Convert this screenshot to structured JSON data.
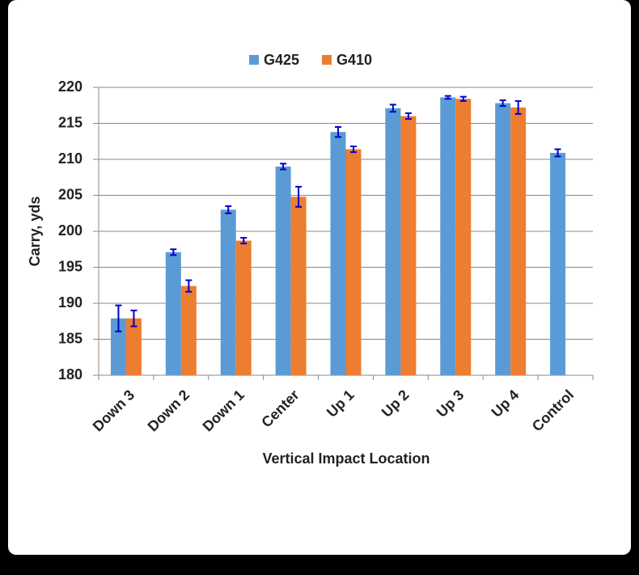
{
  "chart_data": {
    "type": "bar",
    "x_label": "Vertical Impact Location",
    "y_label": "Carry, yds",
    "categories": [
      "Down 3",
      "Down 2",
      "Down 1",
      "Center",
      "Up 1",
      "Up 2",
      "Up 3",
      "Up 4",
      "Control"
    ],
    "series": [
      {
        "name": "G425",
        "color": "#5b9bd5",
        "values": [
          187.9,
          197.1,
          203.0,
          209.0,
          213.8,
          217.1,
          218.6,
          217.8,
          210.9
        ],
        "errors": [
          1.8,
          0.4,
          0.5,
          0.4,
          0.7,
          0.5,
          0.2,
          0.4,
          0.5
        ]
      },
      {
        "name": "G410",
        "color": "#ed7d31",
        "values": [
          187.9,
          192.4,
          198.7,
          204.8,
          211.4,
          216.0,
          218.4,
          217.2,
          null
        ],
        "errors": [
          1.1,
          0.8,
          0.4,
          1.4,
          0.4,
          0.4,
          0.3,
          0.9,
          null
        ]
      }
    ],
    "error_color": "#0000cc",
    "ylim": [
      180,
      220
    ],
    "yticks": [
      180,
      185,
      190,
      195,
      200,
      205,
      210,
      215,
      220
    ],
    "grid": true,
    "legend": "top"
  }
}
